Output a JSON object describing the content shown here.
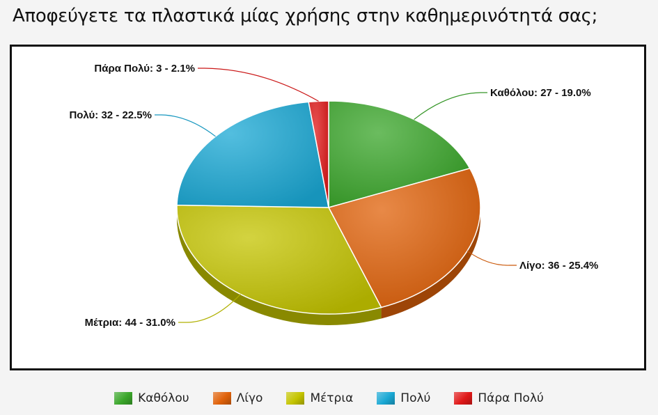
{
  "title": "Αποφεύγετε τα πλαστικά μίας χρήσης στην καθημερινότητά σας;",
  "chart_data": {
    "type": "pie",
    "title": "Αποφεύγετε τα πλαστικά μίας χρήσης στην καθημερινότητά σας;",
    "three_d": true,
    "legend_position": "bottom",
    "slices": [
      {
        "name": "Καθόλου",
        "value": 27,
        "percent": 19.0,
        "label": "Καθόλου: 27 - 19.0%",
        "color": "#3aa62a"
      },
      {
        "name": "Λίγο",
        "value": 36,
        "percent": 25.4,
        "label": "Λίγο: 36 - 25.4%",
        "color": "#e0620a"
      },
      {
        "name": "Μέτρια",
        "value": 44,
        "percent": 31.0,
        "label": "Μέτρια: 44 - 31.0%",
        "color": "#c4c400"
      },
      {
        "name": "Πολύ",
        "value": 32,
        "percent": 22.5,
        "label": "Πολύ: 32 - 22.5%",
        "color": "#1aa8d4"
      },
      {
        "name": "Πάρα Πολύ",
        "value": 3,
        "percent": 2.1,
        "label": "Πάρα Πολύ: 3 - 2.1%",
        "color": "#e01818"
      }
    ]
  },
  "legend": [
    {
      "label": "Καθόλου",
      "color": "#3aa62a"
    },
    {
      "label": "Λίγο",
      "color": "#e0620a"
    },
    {
      "label": "Μέτρια",
      "color": "#c4c400"
    },
    {
      "label": "Πολύ",
      "color": "#1aa8d4"
    },
    {
      "label": "Πάρα Πολύ",
      "color": "#e01818"
    }
  ]
}
